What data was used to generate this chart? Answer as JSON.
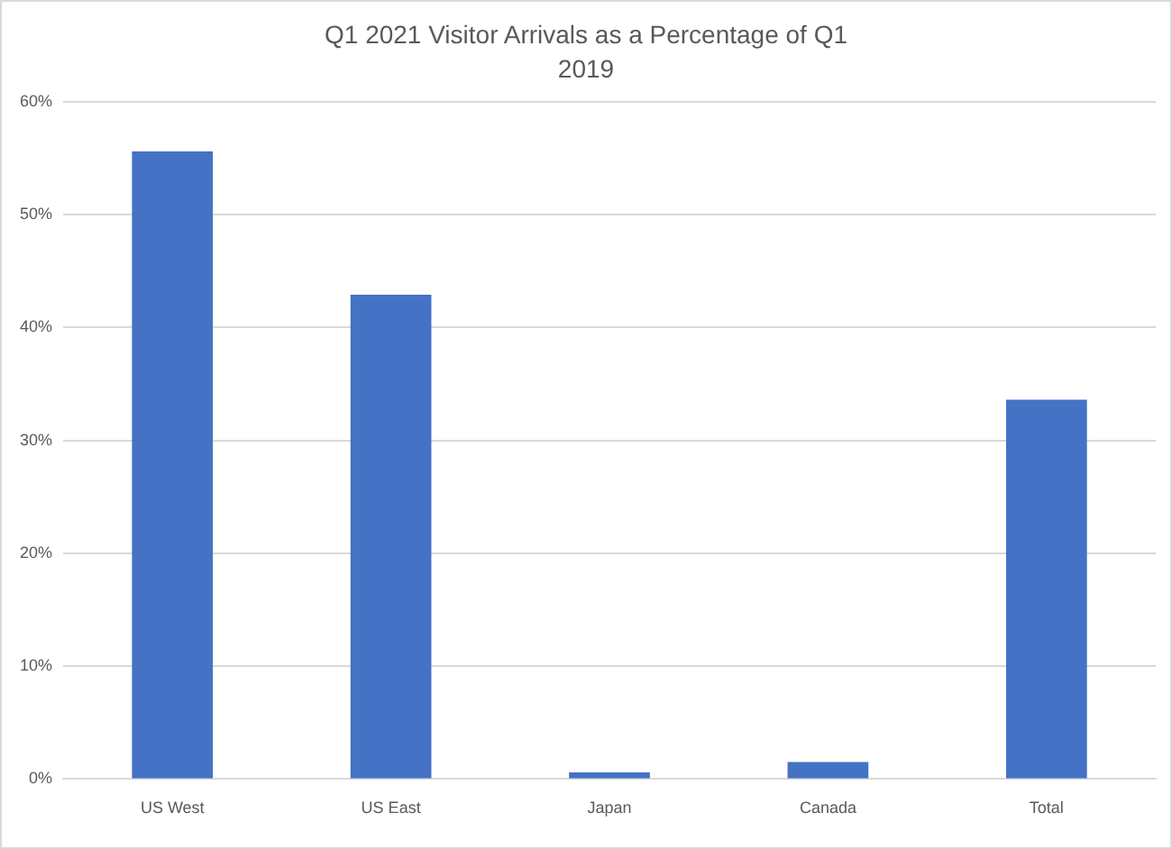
{
  "chart_data": {
    "type": "bar",
    "title": "Q1 2021 Visitor Arrivals as a Percentage of Q1 2019",
    "categories": [
      "US West",
      "US East",
      "Japan",
      "Canada",
      "Total"
    ],
    "values": [
      55.6,
      42.9,
      0.6,
      1.5,
      33.6
    ],
    "color": "#4472c4",
    "ylim": [
      0,
      60
    ],
    "yticks": [
      {
        "value": 0,
        "label": "0%"
      },
      {
        "value": 10,
        "label": "10%"
      },
      {
        "value": 20,
        "label": "20%"
      },
      {
        "value": 30,
        "label": "30%"
      },
      {
        "value": 40,
        "label": "40%"
      },
      {
        "value": 50,
        "label": "50%"
      },
      {
        "value": 60,
        "label": "60%"
      }
    ],
    "grid": "y",
    "legend": false
  }
}
